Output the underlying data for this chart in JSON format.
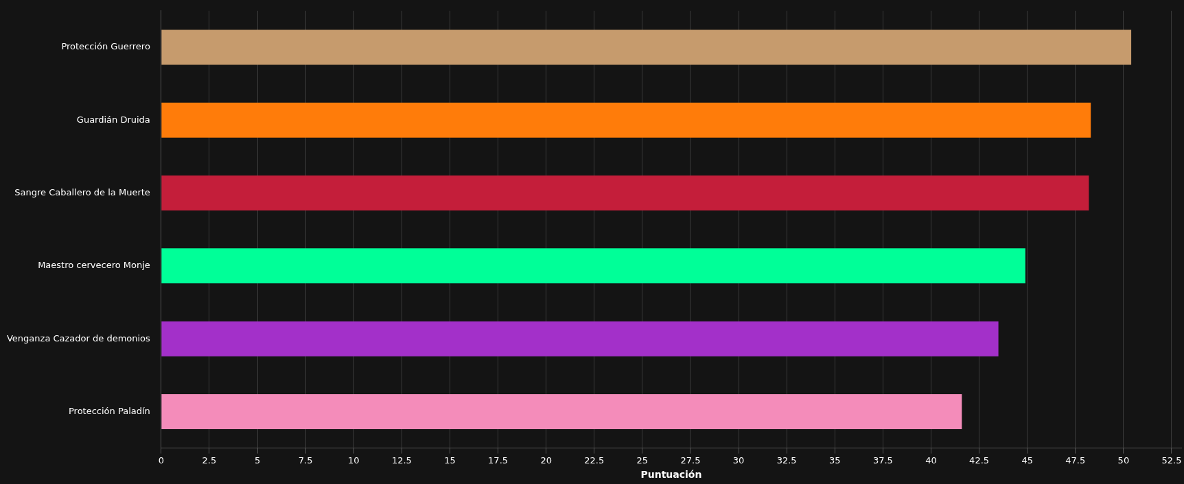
{
  "chart_data": {
    "type": "bar",
    "orientation": "horizontal",
    "xlabel": "Puntuación",
    "categories": [
      "Protección Guerrero",
      "Guardián Druida",
      "Sangre Caballero de la Muerte",
      "Maestro cervecero Monje",
      "Venganza Cazador de demonios",
      "Protección Paladín"
    ],
    "values": [
      50.4,
      48.3,
      48.2,
      44.9,
      43.5,
      41.6
    ],
    "colors": [
      "#c69b6d",
      "#ff7c0a",
      "#c41e3a",
      "#00ff98",
      "#a330c9",
      "#f48cba"
    ],
    "xlim": [
      0,
      53
    ],
    "xticks": [
      0,
      2.5,
      5,
      7.5,
      10,
      12.5,
      15,
      17.5,
      20,
      22.5,
      25,
      27.5,
      30,
      32.5,
      35,
      37.5,
      40,
      42.5,
      45,
      47.5,
      50,
      52.5
    ],
    "grid": "x",
    "legend": false
  }
}
